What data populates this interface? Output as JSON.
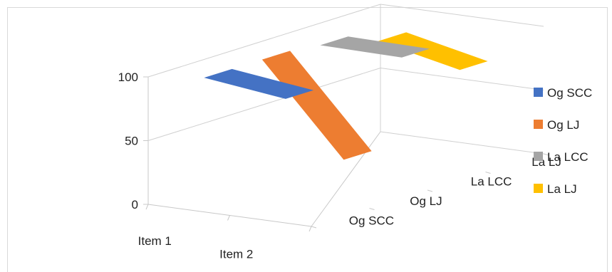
{
  "chart_data": {
    "type": "line",
    "subtype": "3d-line",
    "title": "",
    "categories": [
      "Item 1",
      "Item 2"
    ],
    "depth_categories": [
      "Og SCC",
      "Og LJ",
      "La LCC",
      "La LJ"
    ],
    "ylim": [
      0,
      100
    ],
    "yticks": [
      "0",
      "50",
      "100"
    ],
    "grid": true,
    "legend_position": "right",
    "series": [
      {
        "name": "Og SCC",
        "color": "#4472c4",
        "values": [
          100,
          92
        ]
      },
      {
        "name": "Og LJ",
        "color": "#ed7d31",
        "values": [
          100,
          30
        ]
      },
      {
        "name": "La LCC",
        "color": "#a5a5a5",
        "values": [
          97,
          96
        ]
      },
      {
        "name": "La LJ",
        "color": "#ffc000",
        "values": [
          86,
          72
        ]
      }
    ]
  }
}
